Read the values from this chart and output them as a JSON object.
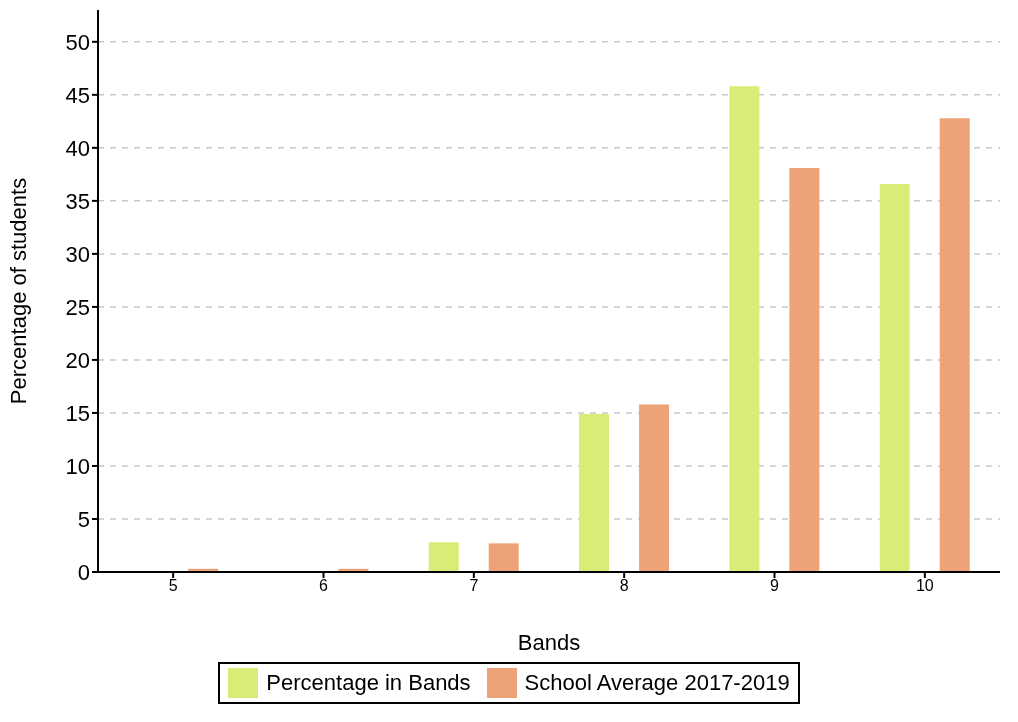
{
  "chart_data": {
    "type": "bar",
    "xlabel": "Bands",
    "ylabel": "Percentage of students",
    "categories": [
      "5",
      "6",
      "7",
      "8",
      "9",
      "10"
    ],
    "series": [
      {
        "name": "Percentage in Bands",
        "color": "#d8ed75",
        "values": [
          null,
          null,
          2.8,
          14.9,
          45.8,
          36.6
        ]
      },
      {
        "name": "School Average 2017-2019",
        "color": "#eea277",
        "values": [
          0.3,
          0.3,
          2.7,
          15.8,
          38.1,
          42.8
        ]
      }
    ],
    "ylim": [
      0,
      53
    ],
    "yticks": [
      0,
      5,
      10,
      15,
      20,
      25,
      30,
      35,
      40,
      45,
      50
    ],
    "grid": "y",
    "legend": "bottom"
  }
}
